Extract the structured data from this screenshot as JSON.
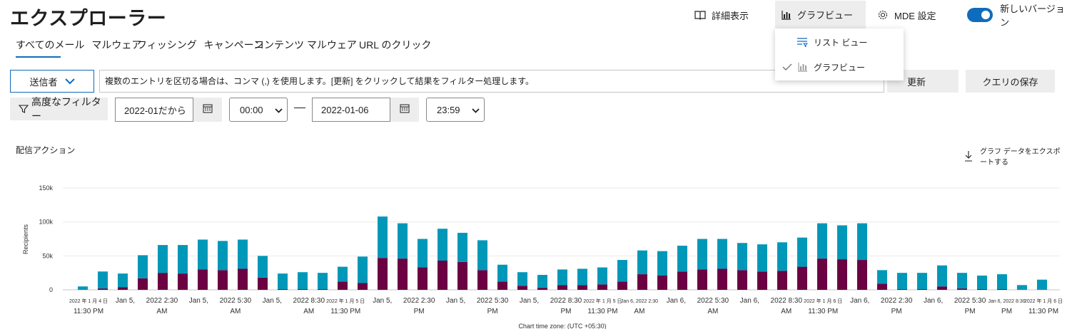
{
  "header": {
    "title": "エクスプローラー",
    "detail_view": "詳細表示",
    "graph_view": "グラフビュー",
    "mde_settings": "MDE 設定",
    "new_version": "新しいバージョン",
    "new_version_on": true
  },
  "tabs": [
    {
      "label": "すべてのメール",
      "active": true
    },
    {
      "label": "マルウェア"
    },
    {
      "label": "フィッシング"
    },
    {
      "label": "キャンペーン"
    },
    {
      "label": "コンテンツ マルウェア"
    },
    {
      "label": "URL のクリック"
    }
  ],
  "filter": {
    "sender_label": "送信者",
    "placeholder": "複数のエントリを区切る場合は、コンマ (,) を使用します。[更新] をクリックして結果をフィルター処理します。",
    "refresh": "更新",
    "save_query": "クエリの保存",
    "advanced": "高度なフィルター",
    "date_from": "2022-01だから",
    "time_from": "00:00",
    "date_to": "2022-01-06",
    "time_to": "23:59"
  },
  "dropdown": {
    "list_view": "リスト ビュー",
    "graph_view": "グラフビュー",
    "selected": "graph"
  },
  "chart_section": {
    "title": "配信アクション",
    "export": "グラフ データをエクスポートする"
  },
  "colors": {
    "accent": "#0f6cbd",
    "series_top": "#0098b8",
    "series_bottom": "#6b0043"
  },
  "chart_data": {
    "type": "bar",
    "stacked": true,
    "ylabel": "Recipients",
    "xlabel": "Chart time zone: (UTC +05:30)",
    "ylim": [
      0,
      150000
    ],
    "yticks": [
      "0",
      "50k",
      "100k",
      "150k"
    ],
    "grid": true,
    "x_tick_labels": [
      {
        "line1": "2022 年 1 月 4 日",
        "line2": "11:30 PM",
        "small": true
      },
      {
        "line1": "Jan 5,",
        "line2": ""
      },
      {
        "line1": "2022 2:30",
        "line2": "AM"
      },
      {
        "line1": "Jan 5,",
        "line2": ""
      },
      {
        "line1": "2022 5:30",
        "line2": "AM"
      },
      {
        "line1": "Jan 5,",
        "line2": ""
      },
      {
        "line1": "2022 8:30",
        "line2": "AM"
      },
      {
        "line1": "2022 年 1 月 5 日",
        "line2": "11:30 PM",
        "small": true
      },
      {
        "line1": "Jan 5,",
        "line2": ""
      },
      {
        "line1": "2022 2:30",
        "line2": "PM"
      },
      {
        "line1": "Jan 5,",
        "line2": ""
      },
      {
        "line1": "2022 5:30",
        "line2": "PM"
      },
      {
        "line1": "Jan 5,",
        "line2": ""
      },
      {
        "line1": "2022 8:30",
        "line2": "PM"
      },
      {
        "line1": "2022 年 1 月 5 日",
        "line2": "11:30 PM",
        "small": true
      },
      {
        "line1": "Jan 6, 2022 2:30",
        "line2": "AM",
        "small": true
      },
      {
        "line1": "Jan 6,",
        "line2": ""
      },
      {
        "line1": "2022 5:30",
        "line2": "AM"
      },
      {
        "line1": "Jan 6,",
        "line2": ""
      },
      {
        "line1": "2022 8:30",
        "line2": "AM"
      },
      {
        "line1": "2022 年 1 月 6 日",
        "line2": "11:30 PM",
        "small": true
      },
      {
        "line1": "Jan 6,",
        "line2": ""
      },
      {
        "line1": "2022 2:30",
        "line2": "PM"
      },
      {
        "line1": "Jan 6,",
        "line2": ""
      },
      {
        "line1": "2022 5:30",
        "line2": "PM"
      },
      {
        "line1": "Jan 6, 2022 8:30",
        "line2": "PM",
        "small": true
      },
      {
        "line1": "2022 年 1 月 6 日",
        "line2": "11:30 PM",
        "small": true
      }
    ],
    "series": [
      {
        "values": [
          0,
          2000,
          4000,
          17000,
          25000,
          24000,
          30000,
          29000,
          31000,
          18000,
          1000,
          1000,
          1000,
          12000,
          10000,
          47000,
          46000,
          33000,
          43000,
          41000,
          29000,
          12000,
          6000,
          3000,
          7000,
          7000,
          8000,
          12000,
          23000,
          21000,
          27000,
          30000,
          31000,
          29000,
          27000,
          28000,
          34000,
          46000,
          45000,
          44000,
          9000,
          1000,
          1000,
          5000,
          2000,
          1000,
          1000,
          0,
          0
        ]
      },
      {
        "values": [
          5000,
          25000,
          20000,
          34000,
          41000,
          42000,
          44000,
          43000,
          43000,
          32000,
          23000,
          25000,
          24000,
          22000,
          39000,
          61000,
          52000,
          42000,
          47000,
          43000,
          44000,
          25000,
          20000,
          19000,
          23000,
          24000,
          25000,
          32000,
          35000,
          36000,
          38000,
          45000,
          44000,
          40000,
          40000,
          42000,
          43000,
          52000,
          50000,
          54000,
          20000,
          24000,
          24000,
          31000,
          23000,
          20000,
          22000,
          7000,
          15000
        ]
      }
    ]
  }
}
